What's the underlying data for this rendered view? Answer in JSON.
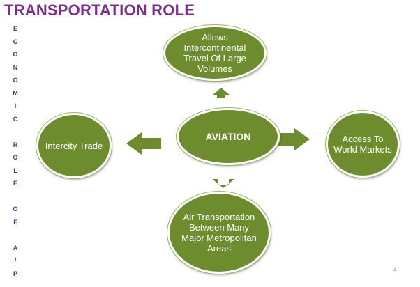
{
  "title": "TRANSPORTATION ROLE",
  "vertical_text": [
    "E",
    "C",
    "O",
    "N",
    "O",
    "M",
    "I",
    "C",
    "",
    "R",
    "O",
    "L",
    "E",
    "",
    "O",
    "F",
    "",
    "A",
    "/",
    "P"
  ],
  "nodes": {
    "center": "AVIATION",
    "top": "Allows Intercontinental Travel Of Large Volumes",
    "left": "Intercity Trade",
    "right": "Access To World Markets",
    "bottom": "Air Transportation Between Many Major Metropolitan Areas"
  },
  "page_number": "4",
  "colors": {
    "node_fill": "#6d8c2e",
    "arrow_fill": "#6d8c2e",
    "title": "#7a2e8c",
    "vertical_text": "#5a2a7a"
  }
}
